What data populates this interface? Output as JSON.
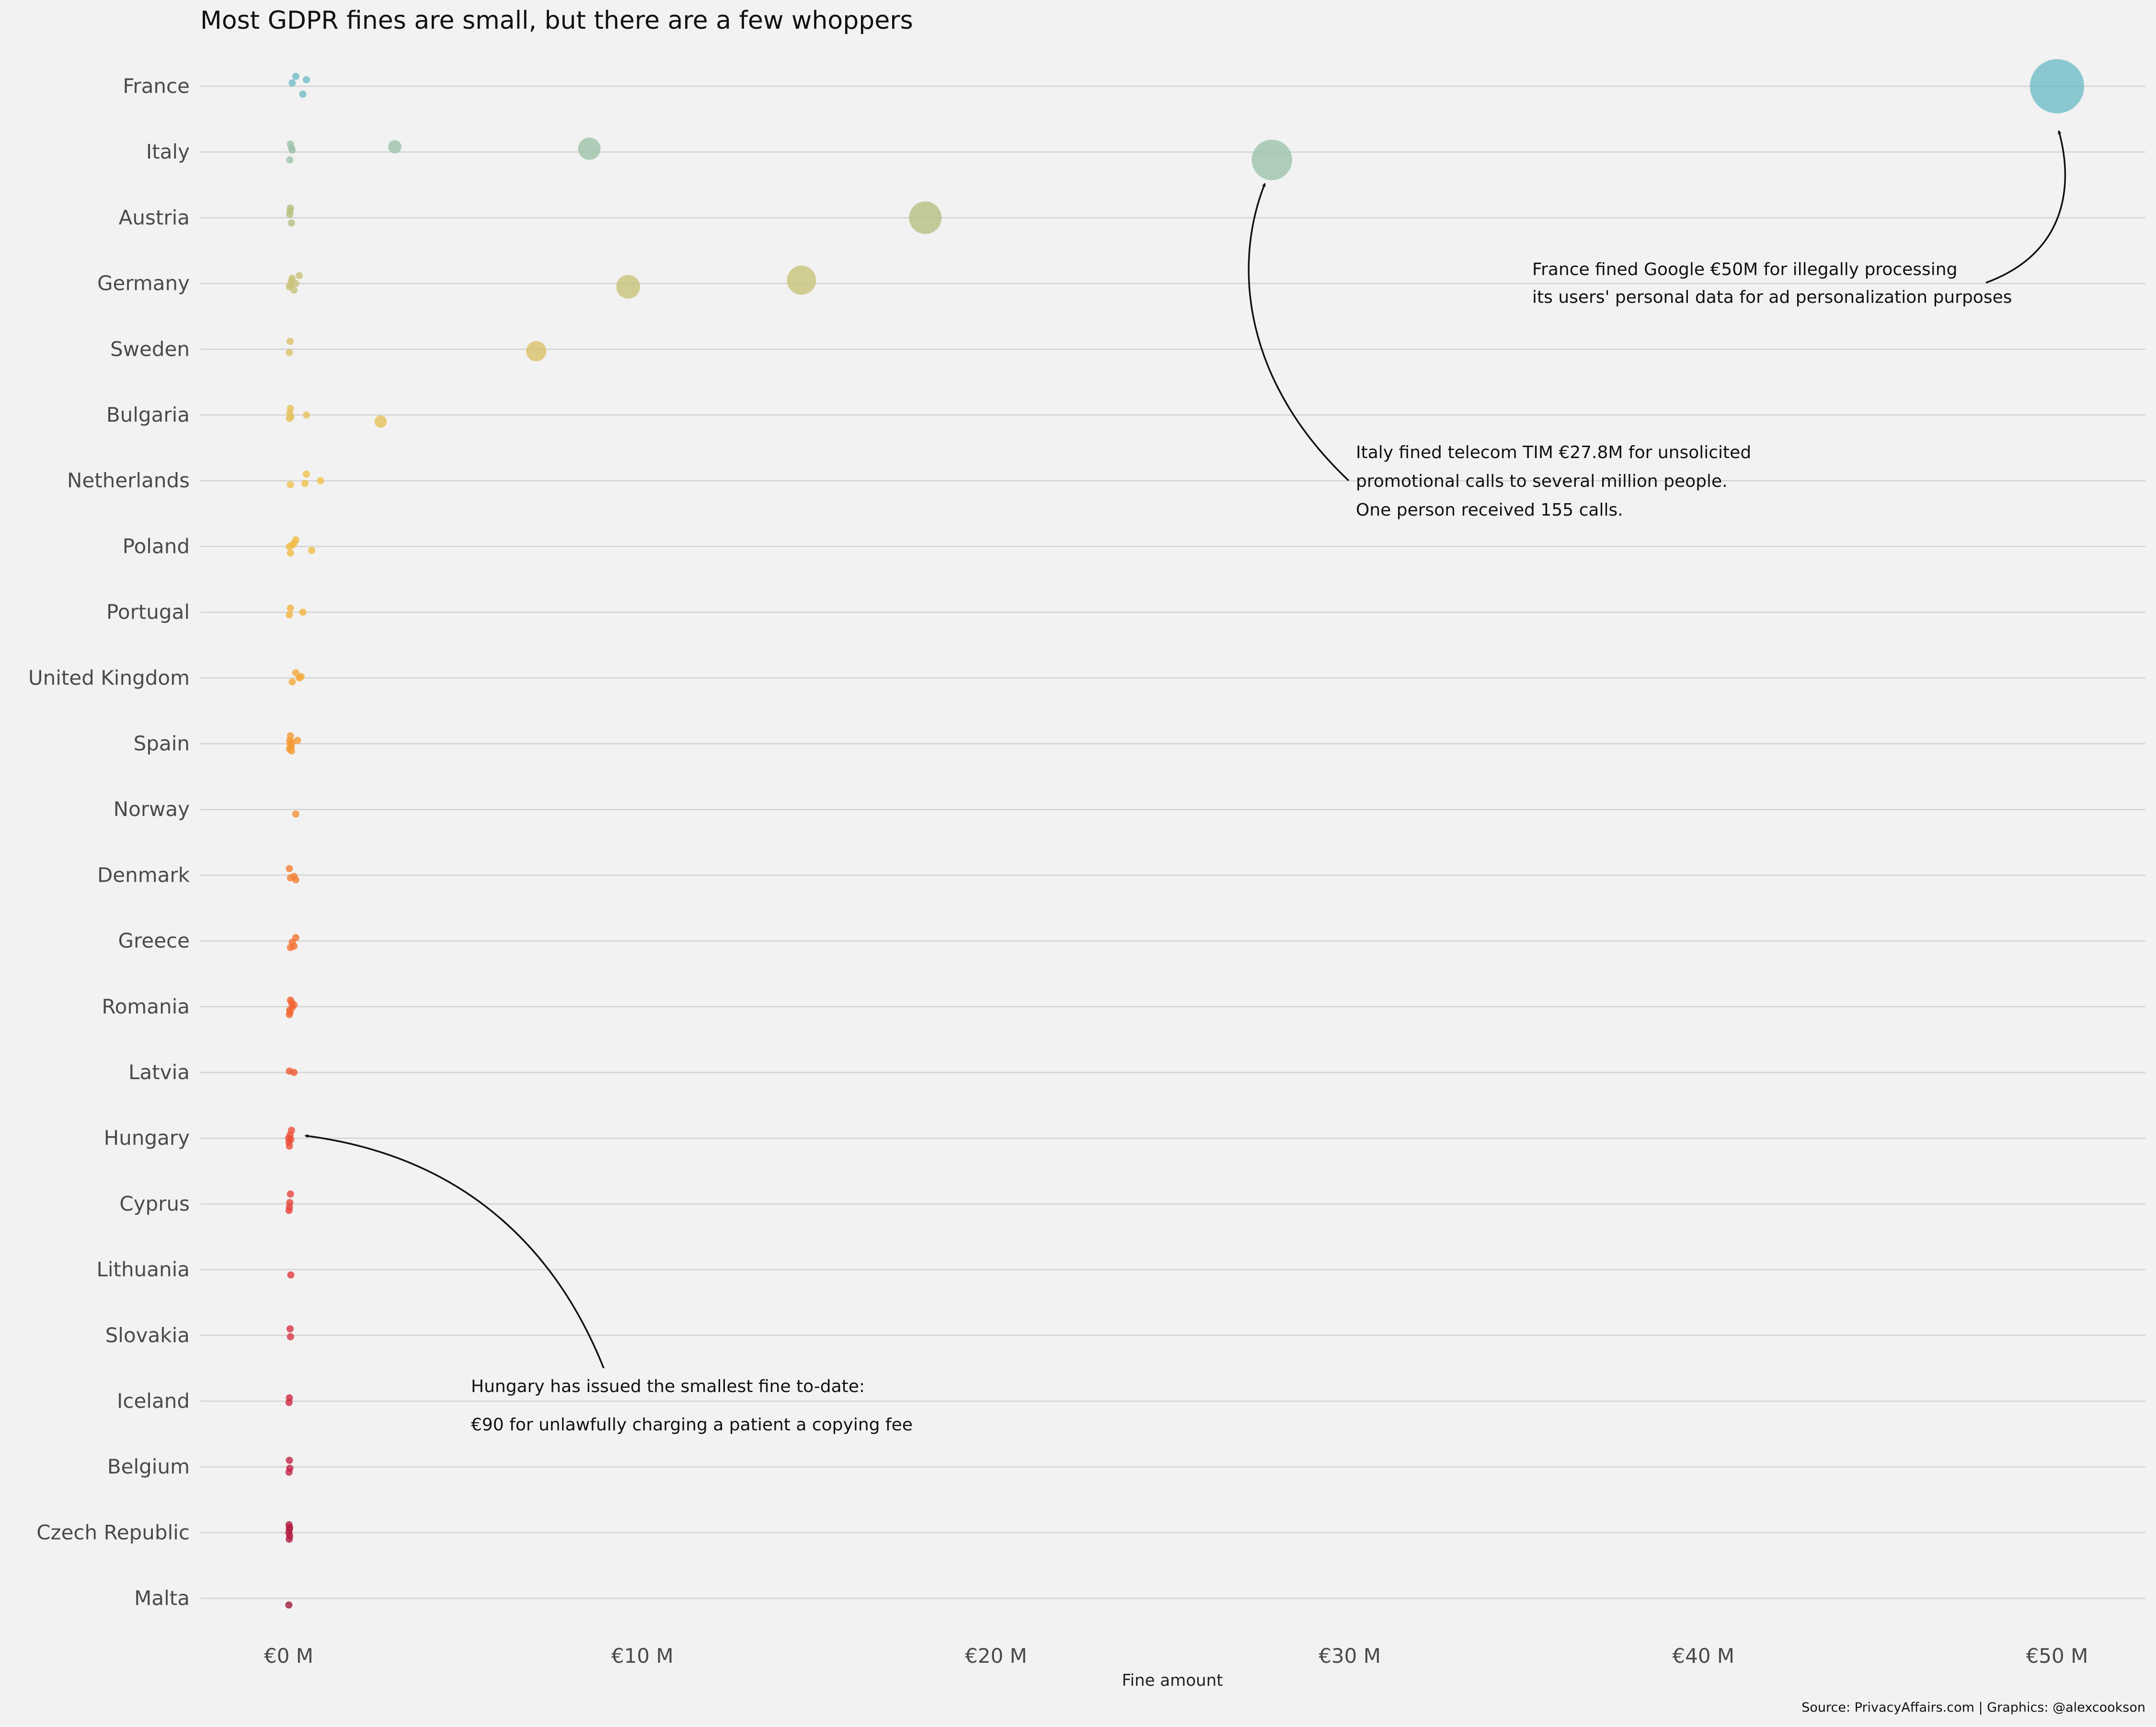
{
  "chart_data": {
    "type": "scatter",
    "title": "Most GDPR fines are small, but there are a few whoppers",
    "xlabel": "Fine amount",
    "ylabel": "",
    "source": "Source: PrivacyAffairs.com | Graphics: @alexcookson",
    "xlim": [
      -2.5,
      52.5
    ],
    "x_ticks": [
      0,
      10,
      20,
      30,
      40,
      50
    ],
    "x_tick_labels": [
      "€0 M",
      "€10 M",
      "€20 M",
      "€30 M",
      "€40 M",
      "€50 M"
    ],
    "x_unit": "€ million",
    "grid": "horizontal",
    "categories": [
      "France",
      "Italy",
      "Austria",
      "Germany",
      "Sweden",
      "Bulgaria",
      "Netherlands",
      "Poland",
      "Portugal",
      "United Kingdom",
      "Spain",
      "Norway",
      "Denmark",
      "Greece",
      "Romania",
      "Latvia",
      "Hungary",
      "Cyprus",
      "Lithuania",
      "Slovakia",
      "Iceland",
      "Belgium",
      "Czech Republic",
      "Malta"
    ],
    "colors": [
      "#6fbcc6",
      "#9cc2a8",
      "#b5bf82",
      "#c8c279",
      "#d9c268",
      "#e6c25b",
      "#edc04a",
      "#f0bb45",
      "#f2b440",
      "#f4a93c",
      "#f59b37",
      "#f58c34",
      "#f57f33",
      "#f47232",
      "#f26634",
      "#ef5b36",
      "#ec4e38",
      "#e8433c",
      "#e23b40",
      "#da3344",
      "#cf2b46",
      "#c32446",
      "#b31d42",
      "#a01a3c"
    ],
    "series": [
      {
        "name": "France",
        "points": [
          {
            "x": 50.0,
            "dy": 0.0
          },
          {
            "x": 0.1,
            "dy": -0.05
          },
          {
            "x": 0.2,
            "dy": -0.15
          },
          {
            "x": 0.4,
            "dy": 0.12
          },
          {
            "x": 0.5,
            "dy": -0.1
          }
        ]
      },
      {
        "name": "Italy",
        "points": [
          {
            "x": 27.8,
            "dy": 0.12
          },
          {
            "x": 8.5,
            "dy": -0.05
          },
          {
            "x": 3.0,
            "dy": -0.08
          },
          {
            "x": 0.05,
            "dy": -0.12
          },
          {
            "x": 0.08,
            "dy": -0.06
          },
          {
            "x": 0.03,
            "dy": 0.12
          },
          {
            "x": 0.1,
            "dy": -0.03
          }
        ]
      },
      {
        "name": "Austria",
        "points": [
          {
            "x": 18.0,
            "dy": 0.0
          },
          {
            "x": 0.05,
            "dy": -0.15
          },
          {
            "x": 0.03,
            "dy": -0.05
          },
          {
            "x": 0.08,
            "dy": 0.08
          },
          {
            "x": 0.04,
            "dy": -0.1
          }
        ]
      },
      {
        "name": "Germany",
        "points": [
          {
            "x": 14.5,
            "dy": -0.05
          },
          {
            "x": 9.6,
            "dy": 0.05
          },
          {
            "x": 0.3,
            "dy": -0.12
          },
          {
            "x": 0.1,
            "dy": -0.08
          },
          {
            "x": 0.05,
            "dy": 0.02
          },
          {
            "x": 0.15,
            "dy": 0.1
          },
          {
            "x": 0.02,
            "dy": 0.05
          },
          {
            "x": 0.2,
            "dy": 0.0
          },
          {
            "x": 0.08,
            "dy": -0.04
          }
        ]
      },
      {
        "name": "Sweden",
        "points": [
          {
            "x": 7.0,
            "dy": 0.03
          },
          {
            "x": 0.04,
            "dy": -0.12
          },
          {
            "x": 0.02,
            "dy": 0.05
          }
        ]
      },
      {
        "name": "Bulgaria",
        "points": [
          {
            "x": 2.6,
            "dy": 0.1
          },
          {
            "x": 0.5,
            "dy": 0.0
          },
          {
            "x": 0.05,
            "dy": -0.1
          },
          {
            "x": 0.02,
            "dy": 0.05
          },
          {
            "x": 0.03,
            "dy": -0.03
          },
          {
            "x": 0.06,
            "dy": 0.03
          }
        ]
      },
      {
        "name": "Netherlands",
        "points": [
          {
            "x": 0.9,
            "dy": 0.0
          },
          {
            "x": 0.5,
            "dy": -0.1
          },
          {
            "x": 0.46,
            "dy": 0.04
          },
          {
            "x": 0.05,
            "dy": 0.06
          }
        ]
      },
      {
        "name": "Poland",
        "points": [
          {
            "x": 0.65,
            "dy": 0.06
          },
          {
            "x": 0.2,
            "dy": -0.1
          },
          {
            "x": 0.15,
            "dy": -0.05
          },
          {
            "x": 0.05,
            "dy": 0.1
          },
          {
            "x": 0.02,
            "dy": 0.0
          },
          {
            "x": 0.1,
            "dy": -0.02
          }
        ]
      },
      {
        "name": "Portugal",
        "points": [
          {
            "x": 0.4,
            "dy": 0.0
          },
          {
            "x": 0.05,
            "dy": -0.06
          },
          {
            "x": 0.02,
            "dy": 0.04
          }
        ]
      },
      {
        "name": "United Kingdom",
        "points": [
          {
            "x": 0.2,
            "dy": -0.08
          },
          {
            "x": 0.3,
            "dy": 0.0
          },
          {
            "x": 0.1,
            "dy": 0.06
          },
          {
            "x": 0.35,
            "dy": -0.02
          }
        ]
      },
      {
        "name": "Spain",
        "points": [
          {
            "x": 0.25,
            "dy": -0.05
          },
          {
            "x": 0.05,
            "dy": -0.12
          },
          {
            "x": 0.03,
            "dy": -0.05
          },
          {
            "x": 0.06,
            "dy": 0.02
          },
          {
            "x": 0.02,
            "dy": 0.08
          },
          {
            "x": 0.08,
            "dy": 0.11
          },
          {
            "x": 0.04,
            "dy": 0.0
          },
          {
            "x": 0.1,
            "dy": -0.02
          },
          {
            "x": 0.07,
            "dy": 0.05
          }
        ]
      },
      {
        "name": "Norway",
        "points": [
          {
            "x": 0.2,
            "dy": 0.07
          }
        ]
      },
      {
        "name": "Denmark",
        "points": [
          {
            "x": 0.2,
            "dy": 0.07
          },
          {
            "x": 0.02,
            "dy": -0.1
          },
          {
            "x": 0.05,
            "dy": 0.04
          },
          {
            "x": 0.15,
            "dy": 0.02
          }
        ]
      },
      {
        "name": "Greece",
        "points": [
          {
            "x": 0.2,
            "dy": -0.05
          },
          {
            "x": 0.05,
            "dy": 0.1
          },
          {
            "x": 0.15,
            "dy": 0.08
          },
          {
            "x": 0.1,
            "dy": 0.02
          }
        ]
      },
      {
        "name": "Romania",
        "points": [
          {
            "x": 0.15,
            "dy": -0.03
          },
          {
            "x": 0.05,
            "dy": -0.1
          },
          {
            "x": 0.02,
            "dy": 0.12
          },
          {
            "x": 0.03,
            "dy": 0.05
          },
          {
            "x": 0.08,
            "dy": -0.06
          },
          {
            "x": 0.04,
            "dy": 0.08
          },
          {
            "x": 0.1,
            "dy": 0.01
          }
        ]
      },
      {
        "name": "Latvia",
        "points": [
          {
            "x": 0.15,
            "dy": 0.0
          },
          {
            "x": 0.02,
            "dy": -0.02
          }
        ]
      },
      {
        "name": "Hungary",
        "points": [
          {
            "x": 9e-05,
            "dy": 0.0
          },
          {
            "x": 0.08,
            "dy": -0.12
          },
          {
            "x": 0.02,
            "dy": 0.12
          },
          {
            "x": 0.04,
            "dy": -0.05
          },
          {
            "x": 0.01,
            "dy": 0.06
          },
          {
            "x": 0.06,
            "dy": 0.02
          }
        ]
      },
      {
        "name": "Cyprus",
        "points": [
          {
            "x": 0.05,
            "dy": -0.15
          },
          {
            "x": 0.02,
            "dy": 0.05
          },
          {
            "x": 0.03,
            "dy": -0.02
          },
          {
            "x": 0.01,
            "dy": 0.1
          }
        ]
      },
      {
        "name": "Lithuania",
        "points": [
          {
            "x": 0.06,
            "dy": 0.08
          }
        ]
      },
      {
        "name": "Slovakia",
        "points": [
          {
            "x": 0.04,
            "dy": -0.1
          },
          {
            "x": 0.05,
            "dy": 0.02
          }
        ]
      },
      {
        "name": "Iceland",
        "points": [
          {
            "x": 0.02,
            "dy": -0.05
          },
          {
            "x": 0.01,
            "dy": 0.02
          }
        ]
      },
      {
        "name": "Belgium",
        "points": [
          {
            "x": 0.02,
            "dy": -0.1
          },
          {
            "x": 0.03,
            "dy": 0.02
          },
          {
            "x": 0.01,
            "dy": 0.08
          }
        ]
      },
      {
        "name": "Czech Republic",
        "points": [
          {
            "x": 0.01,
            "dy": -0.12
          },
          {
            "x": 0.02,
            "dy": -0.05
          },
          {
            "x": 0.005,
            "dy": 0.0
          },
          {
            "x": 0.03,
            "dy": 0.05
          },
          {
            "x": 0.015,
            "dy": 0.1
          },
          {
            "x": 0.025,
            "dy": -0.08
          }
        ]
      },
      {
        "name": "Malta",
        "points": [
          {
            "x": 0.005,
            "dy": 0.1
          }
        ]
      }
    ],
    "annotations": [
      {
        "target": "France",
        "lines": [
          "France fined Google €50M for illegally processing",
          "its users' personal data for ad personalization purposes"
        ]
      },
      {
        "target": "Italy",
        "lines": [
          "Italy fined telecom TIM €27.8M for unsolicited",
          "promotional calls to several million people.",
          "One person received 155 calls."
        ]
      },
      {
        "target": "Hungary",
        "lines": [
          "Hungary has issued the smallest fine to-date:",
          "€90 for unlawfully charging a patient a copying fee"
        ]
      }
    ]
  }
}
